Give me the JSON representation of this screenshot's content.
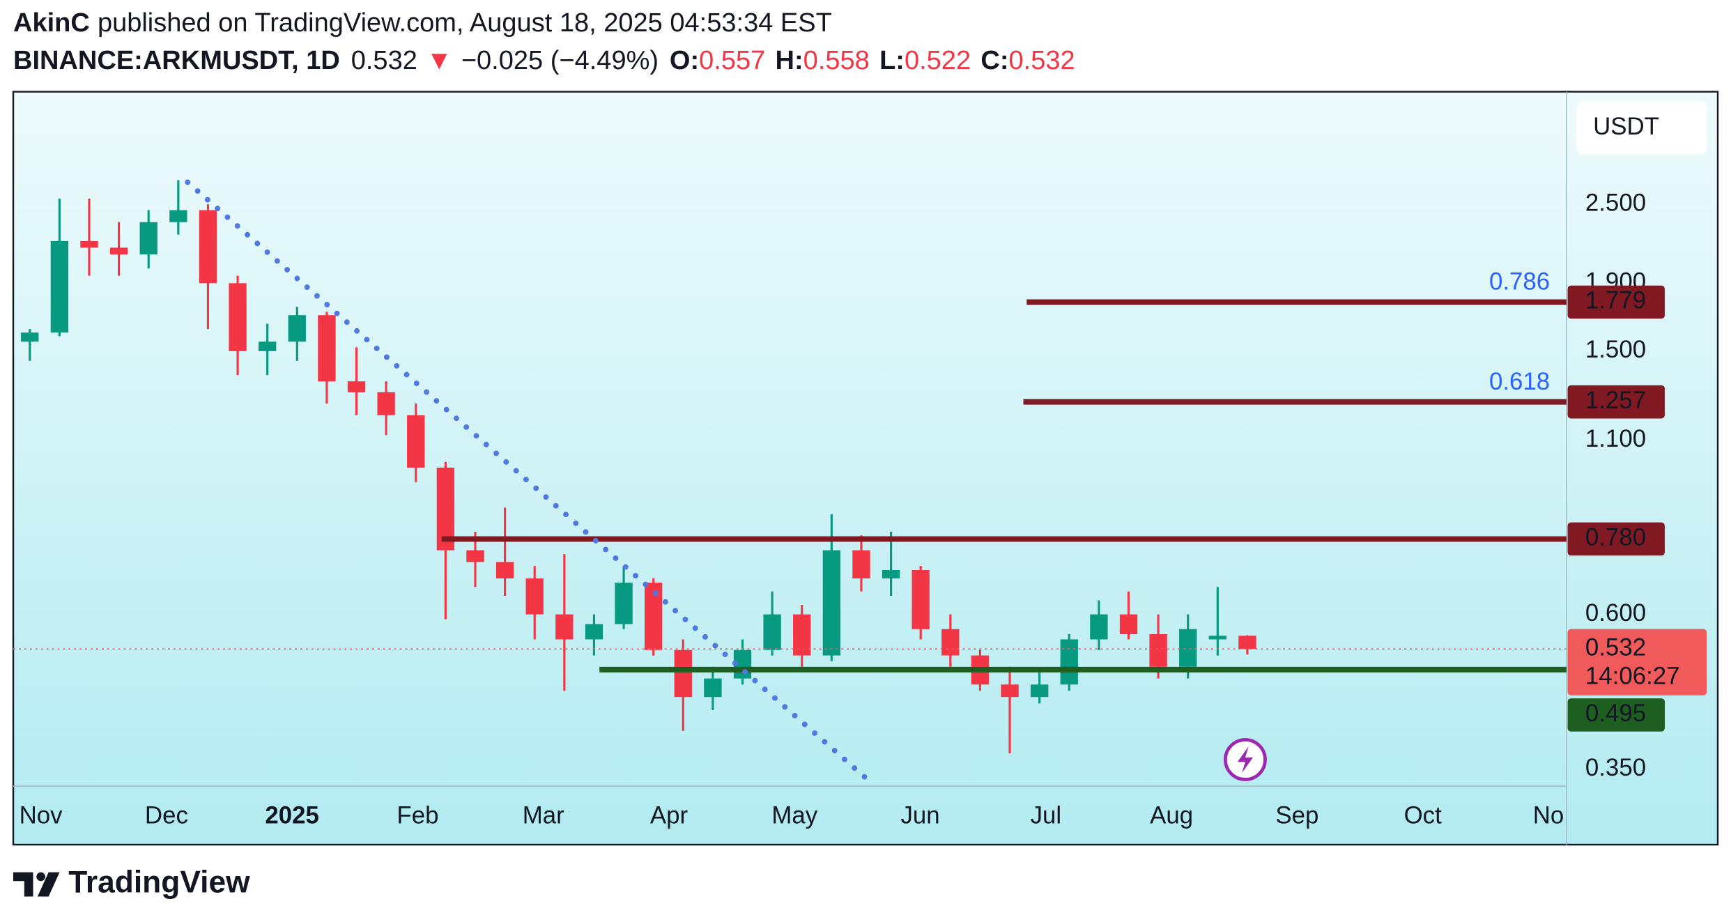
{
  "header": {
    "author": "AkinC",
    "published": "published on TradingView.com, August 18, 2025 04:53:34 EST",
    "symbol": "BINANCE:ARKMUSDT, 1D",
    "last": "0.532",
    "arrow": "▼",
    "change": "−0.025 (−4.49%)",
    "ohlc": [
      {
        "label": "O:",
        "value": "0.557"
      },
      {
        "label": "H:",
        "value": "0.558"
      },
      {
        "label": "L:",
        "value": "0.522"
      },
      {
        "label": "C:",
        "value": "0.532"
      }
    ]
  },
  "chart_data": {
    "type": "candlestick",
    "currency": "USDT",
    "log_scale": true,
    "up_color": "#089981",
    "down_color": "#f23645",
    "open": [
      1.55,
      1.6,
      2.2,
      2.15,
      2.1,
      2.35,
      2.45,
      1.9,
      1.5,
      1.55,
      1.7,
      1.35,
      1.3,
      1.2,
      1.0,
      0.75,
      0.72,
      0.68,
      0.6,
      0.55,
      0.58,
      0.67,
      0.53,
      0.45,
      0.48,
      0.53,
      0.6,
      0.52,
      0.75,
      0.68,
      0.7,
      0.57,
      0.52,
      0.47,
      0.45,
      0.47,
      0.55,
      0.6,
      0.56,
      0.5,
      0.55,
      0.557
    ],
    "high": [
      1.62,
      2.55,
      2.55,
      2.35,
      2.45,
      2.72,
      2.5,
      1.95,
      1.65,
      1.75,
      1.72,
      1.52,
      1.35,
      1.25,
      1.02,
      0.8,
      0.87,
      0.71,
      0.74,
      0.6,
      0.71,
      0.68,
      0.55,
      0.5,
      0.55,
      0.65,
      0.62,
      0.85,
      0.79,
      0.8,
      0.71,
      0.6,
      0.53,
      0.5,
      0.49,
      0.56,
      0.63,
      0.65,
      0.6,
      0.6,
      0.66,
      0.558
    ],
    "low": [
      1.45,
      1.58,
      1.95,
      1.95,
      2.0,
      2.25,
      1.62,
      1.38,
      1.38,
      1.45,
      1.25,
      1.2,
      1.12,
      0.95,
      0.59,
      0.66,
      0.64,
      0.55,
      0.46,
      0.52,
      0.57,
      0.52,
      0.4,
      0.43,
      0.47,
      0.52,
      0.5,
      0.51,
      0.65,
      0.64,
      0.55,
      0.5,
      0.46,
      0.37,
      0.44,
      0.46,
      0.53,
      0.55,
      0.48,
      0.48,
      0.52,
      0.522
    ],
    "close": [
      1.6,
      2.2,
      2.15,
      2.1,
      2.35,
      2.45,
      1.9,
      1.5,
      1.55,
      1.7,
      1.35,
      1.3,
      1.2,
      1.0,
      0.75,
      0.72,
      0.68,
      0.6,
      0.55,
      0.58,
      0.67,
      0.53,
      0.45,
      0.48,
      0.53,
      0.6,
      0.52,
      0.75,
      0.68,
      0.7,
      0.57,
      0.52,
      0.47,
      0.45,
      0.47,
      0.55,
      0.6,
      0.56,
      0.5,
      0.57,
      0.557,
      0.532
    ],
    "ylim": [
      0.33,
      3.7
    ],
    "yticks": [
      {
        "value": 2.5,
        "label": "2.500"
      },
      {
        "value": 1.9,
        "label": "1.900"
      },
      {
        "value": 1.5,
        "label": "1.500"
      },
      {
        "value": 1.1,
        "label": "1.100"
      },
      {
        "value": 0.6,
        "label": "0.600"
      },
      {
        "value": 0.35,
        "label": "0.350"
      }
    ],
    "x_labels": [
      "Nov",
      "Dec",
      "2025",
      "Feb",
      "Mar",
      "Apr",
      "May",
      "Jun",
      "Jul",
      "Aug",
      "Sep",
      "Oct",
      "No"
    ],
    "levels": [
      {
        "value": 1.779,
        "label": "1.779",
        "fib": "0.786",
        "color": "#801922"
      },
      {
        "value": 1.257,
        "label": "1.257",
        "fib": "0.618",
        "color": "#801922"
      },
      {
        "value": 0.78,
        "label": "0.780",
        "color": "#801922"
      },
      {
        "value": 0.495,
        "label": "0.495",
        "color": "#1e5e20"
      }
    ],
    "last_price": {
      "value": 0.532,
      "label": "0.532",
      "countdown": "14:06:27",
      "color": "#f05a5a"
    }
  },
  "footer": {
    "brand": "TradingView"
  }
}
